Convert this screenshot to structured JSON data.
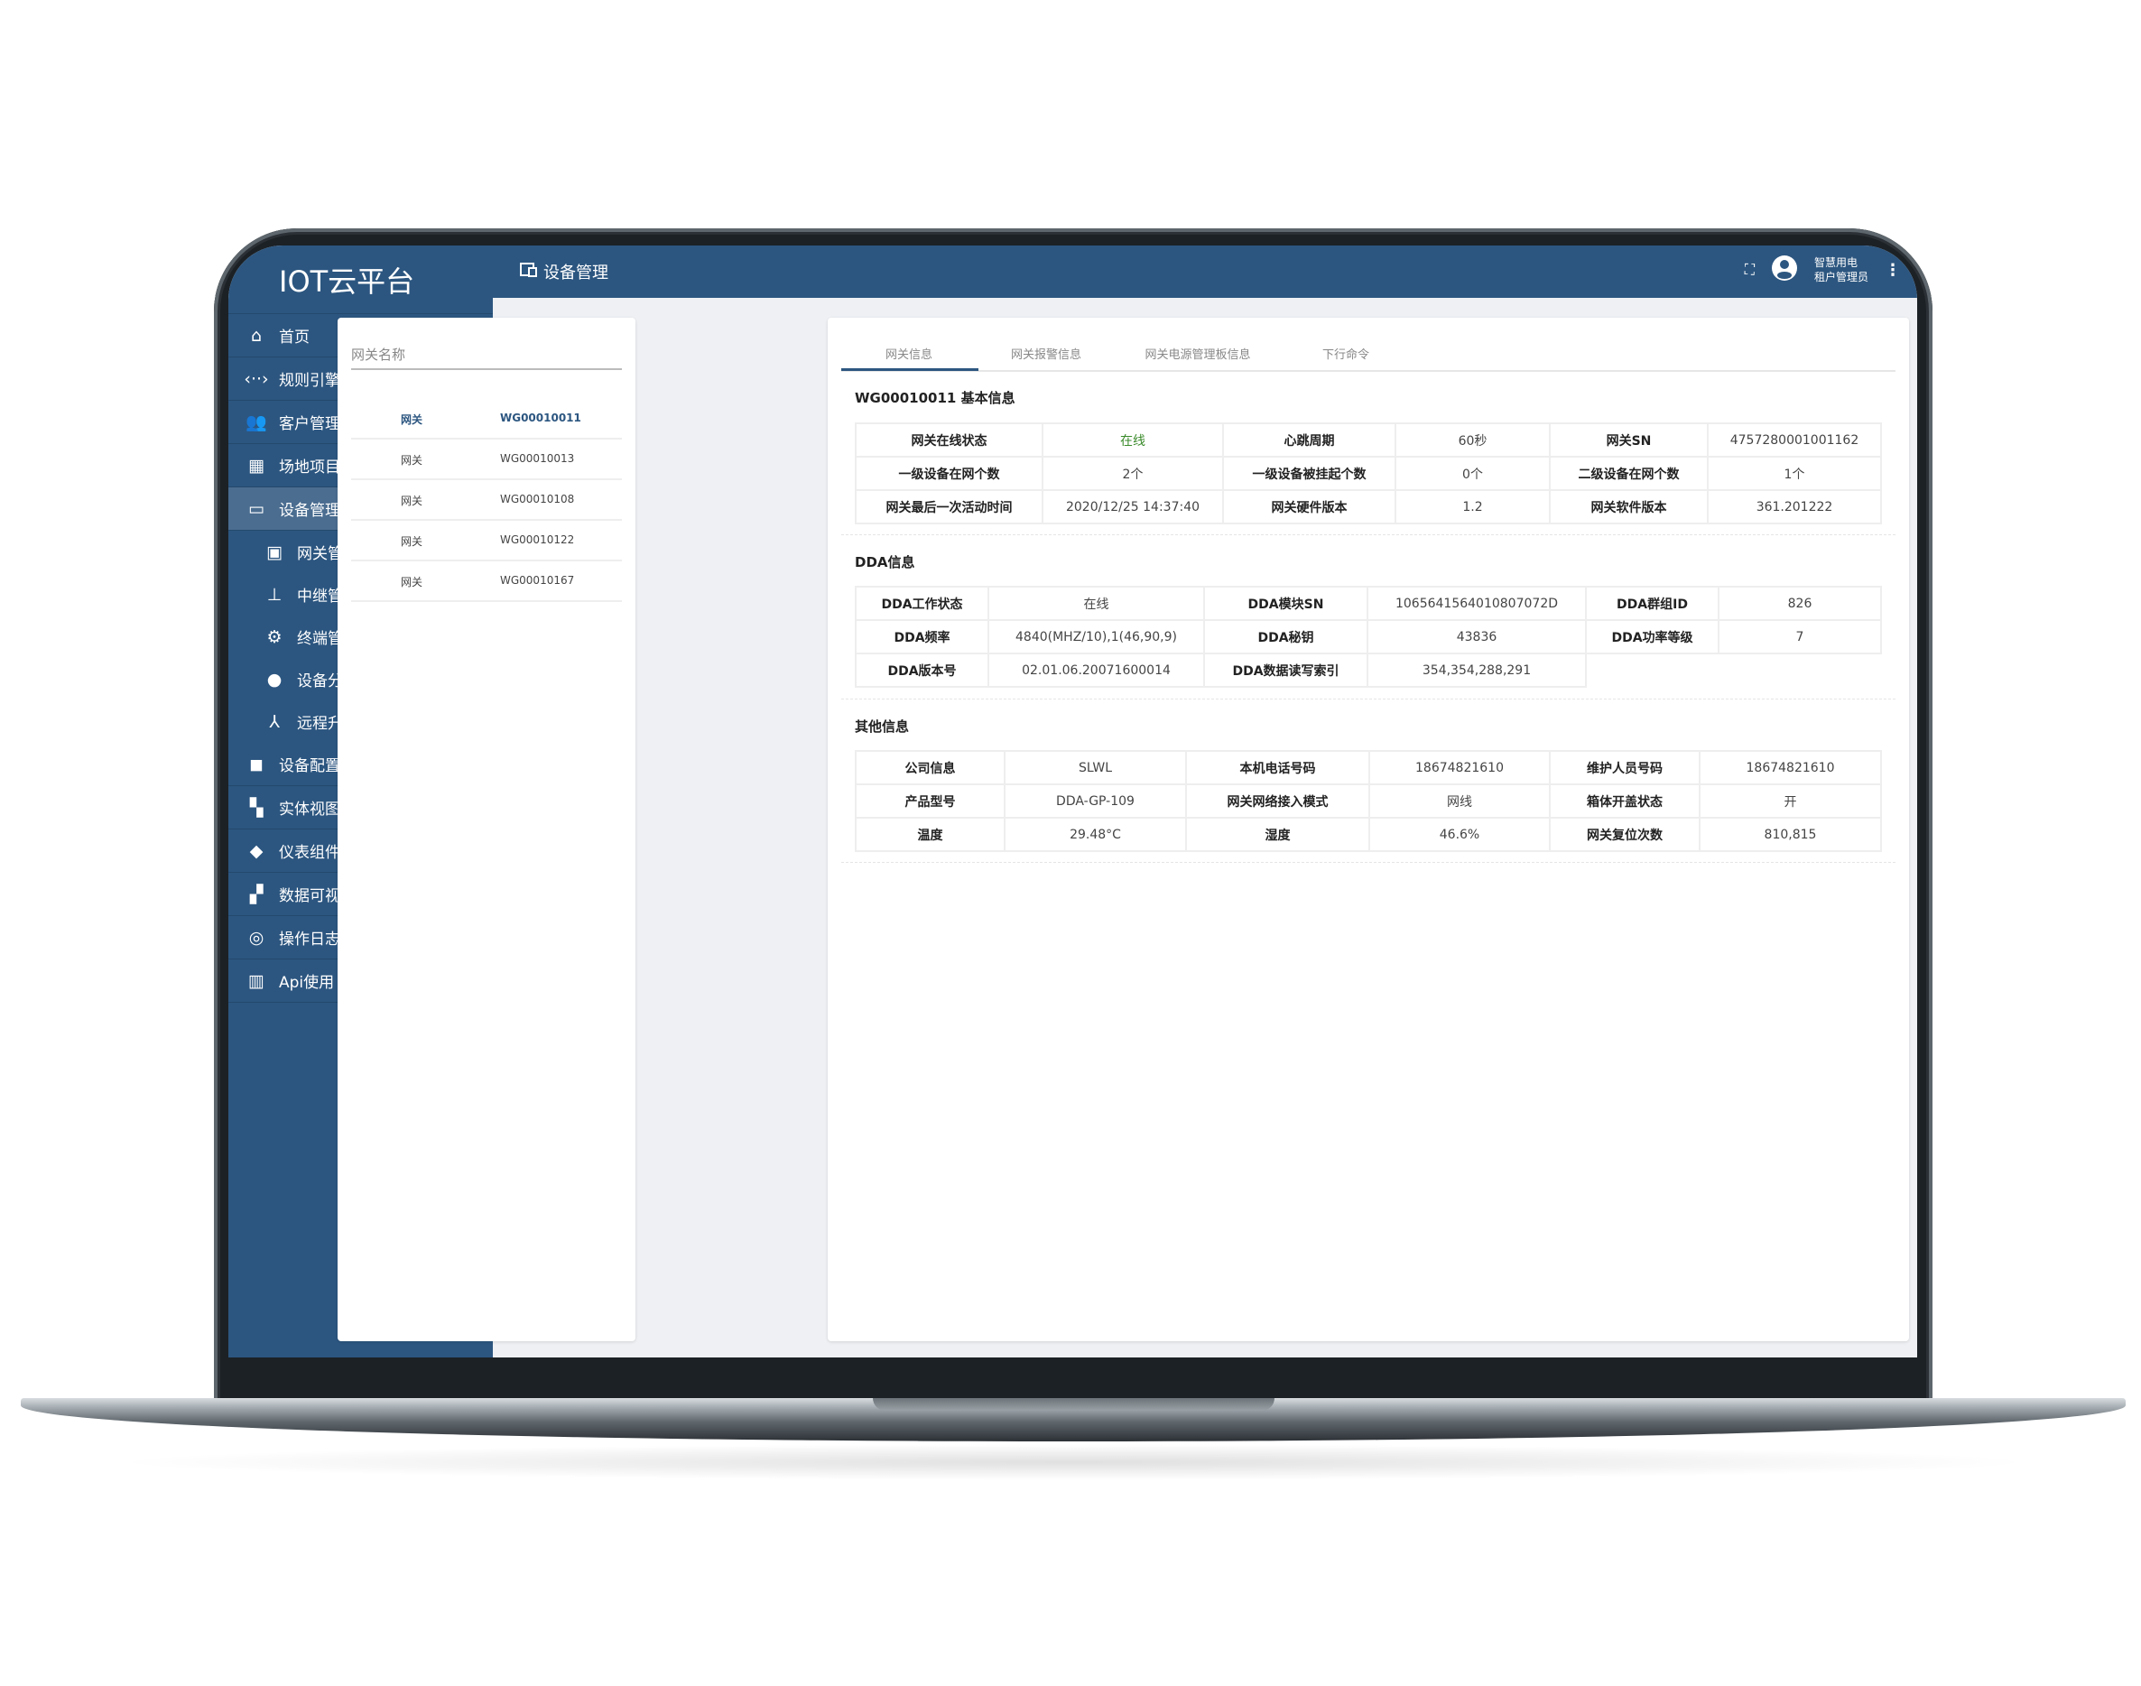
{
  "app": {
    "title": "IOT云平台"
  },
  "header": {
    "title": "设备管理",
    "user_line1": "智慧用电",
    "user_line2": "租户管理员",
    "fullscreen_icon": "fullscreen-icon",
    "more_icon": "more-vertical-icon"
  },
  "sidebar": {
    "items": [
      {
        "label": "首页",
        "icon": "home-icon"
      },
      {
        "label": "规则引擎",
        "icon": "code-icon"
      },
      {
        "label": "客户管理",
        "icon": "people-icon"
      },
      {
        "label": "场地项目",
        "icon": "building-icon"
      },
      {
        "label": "设备管理",
        "icon": "devices-icon",
        "active": true,
        "expanded": true
      },
      {
        "label": "网关管理",
        "icon": "gateway-icon",
        "sub": true
      },
      {
        "label": "中继管理",
        "icon": "router-icon",
        "sub": true
      },
      {
        "label": "终端管理",
        "icon": "chip-icon",
        "sub": true
      },
      {
        "label": "设备分布",
        "icon": "location-pin-icon",
        "sub": true
      },
      {
        "label": "远程升级",
        "icon": "upgrade-icon",
        "sub": true
      },
      {
        "label": "设备配置",
        "icon": "config-icon"
      },
      {
        "label": "实体视图",
        "icon": "view-quilt-icon"
      },
      {
        "label": "仪表组件",
        "icon": "widgets-icon"
      },
      {
        "label": "数据可视",
        "icon": "dashboard-icon"
      },
      {
        "label": "操作日志",
        "icon": "log-icon"
      },
      {
        "label": "Api使用",
        "icon": "bar-chart-icon"
      }
    ]
  },
  "gateway_list": {
    "search_placeholder": "网关名称",
    "rows": [
      {
        "type": "网关",
        "id": "WG00010011",
        "selected": true
      },
      {
        "type": "网关",
        "id": "WG00010013"
      },
      {
        "type": "网关",
        "id": "WG00010108"
      },
      {
        "type": "网关",
        "id": "WG00010122"
      },
      {
        "type": "网关",
        "id": "WG00010167"
      }
    ]
  },
  "tabs": [
    "网关信息",
    "网关报警信息",
    "网关电源管理板信息",
    "下行命令"
  ],
  "basic": {
    "title": "WG00010011 基本信息",
    "rows": [
      [
        "网关在线状态",
        "在线",
        "心跳周期",
        "60秒",
        "网关SN",
        "4757280001001162"
      ],
      [
        "一级设备在网个数",
        "2个",
        "一级设备被挂起个数",
        "0个",
        "二级设备在网个数",
        "1个"
      ],
      [
        "网关最后一次活动时间",
        "2020/12/25 14:37:40",
        "网关硬件版本",
        "1.2",
        "网关软件版本",
        "361.201222"
      ]
    ],
    "online_color": "#3a8a2a"
  },
  "dda": {
    "title": "DDA信息",
    "rows": [
      [
        "DDA工作状态",
        "在线",
        "DDA模块SN",
        "1065641564010807072D",
        "DDA群组ID",
        "826"
      ],
      [
        "DDA频率",
        "4840(MHZ/10),1(46,90,9)",
        "DDA秘钥",
        "43836",
        "DDA功率等级",
        "7"
      ],
      [
        "DDA版本号",
        "02.01.06.20071600014",
        "DDA数据读写索引",
        "354,354,288,291"
      ]
    ]
  },
  "other": {
    "title": "其他信息",
    "rows": [
      [
        "公司信息",
        "SLWL",
        "本机电话号码",
        "18674821610",
        "维护人员号码",
        "18674821610"
      ],
      [
        "产品型号",
        "DDA-GP-109",
        "网关网络接入模式",
        "网线",
        "箱体开盖状态",
        "开"
      ],
      [
        "温度",
        "29.48°C",
        "湿度",
        "46.6%",
        "网关复位次数",
        "810,815"
      ]
    ]
  },
  "colors": {
    "primary": "#2c5680",
    "active_item": "#4a6d90"
  }
}
